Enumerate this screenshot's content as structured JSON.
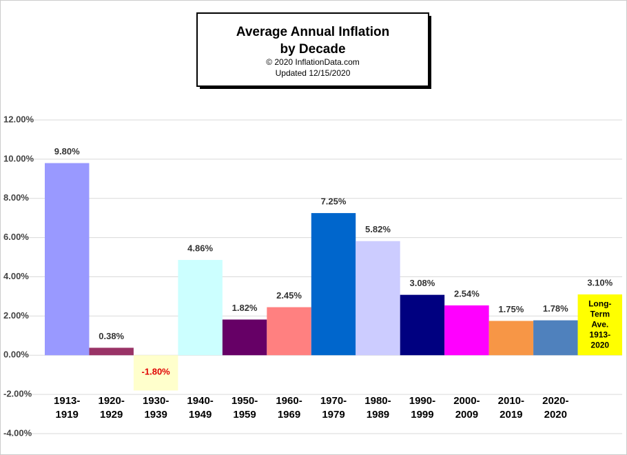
{
  "chart_data": {
    "type": "bar",
    "title": [
      "Average Annual Inflation",
      "by Decade"
    ],
    "subtitle": [
      "© 2020  InflationData.com",
      "Updated   12/15/2020"
    ],
    "categories": [
      [
        "1913-",
        "1919"
      ],
      [
        "1920-",
        "1929"
      ],
      [
        "1930-",
        "1939"
      ],
      [
        "1940-",
        "1949"
      ],
      [
        "1950-",
        "1959"
      ],
      [
        "1960-",
        "1969"
      ],
      [
        "1970-",
        "1979"
      ],
      [
        "1980-",
        "1989"
      ],
      [
        "1990-",
        "1999"
      ],
      [
        "2000-",
        "2009"
      ],
      [
        "2010-",
        "2019"
      ],
      [
        "2020-",
        "2020"
      ],
      [
        "Long-",
        "Term",
        "Ave.",
        "1913-",
        "2020"
      ]
    ],
    "values": [
      9.8,
      0.38,
      -1.8,
      4.86,
      1.82,
      2.45,
      7.25,
      5.82,
      3.08,
      2.54,
      1.75,
      1.78,
      3.1
    ],
    "value_labels": [
      "9.80%",
      "0.38%",
      "-1.80%",
      "4.86%",
      "1.82%",
      "2.45%",
      "7.25%",
      "5.82%",
      "3.08%",
      "2.54%",
      "1.75%",
      "1.78%",
      "3.10%"
    ],
    "colors": [
      "#9999ff",
      "#993366",
      "#ffffcc",
      "#ccffff",
      "#660066",
      "#ff8080",
      "#0066cc",
      "#ccccff",
      "#000080",
      "#ff00ff",
      "#f79646",
      "#4f81bd",
      "#ffff00"
    ],
    "ylim": [
      -4,
      12
    ],
    "yticks": [
      {
        "value": -4,
        "label": "-4.00%"
      },
      {
        "value": -2,
        "label": "-2.00%"
      },
      {
        "value": 0,
        "label": "0.00%"
      },
      {
        "value": 2,
        "label": "2.00%"
      },
      {
        "value": 4,
        "label": "4.00%"
      },
      {
        "value": 6,
        "label": "6.00%"
      },
      {
        "value": 8,
        "label": "8.00%"
      },
      {
        "value": 10,
        "label": "10.00%"
      },
      {
        "value": 12,
        "label": "12.00%"
      }
    ],
    "grid": true
  }
}
